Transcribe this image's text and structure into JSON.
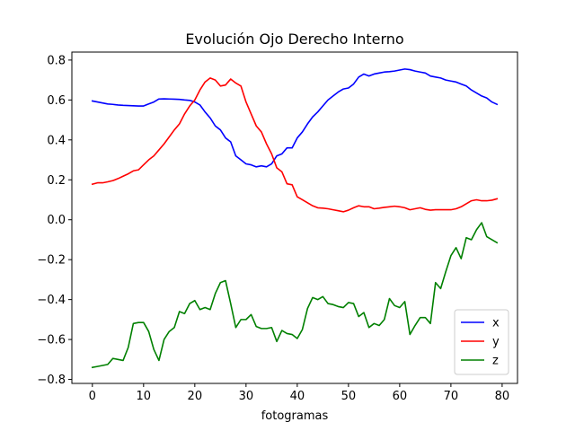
{
  "chart_data": {
    "type": "line",
    "title": "Evolución Ojo Derecho Interno",
    "xlabel": "fotogramas",
    "ylabel": "",
    "xlim": [
      -4,
      83
    ],
    "ylim": [
      -0.82,
      0.84
    ],
    "x_ticks": [
      0,
      10,
      20,
      30,
      40,
      50,
      60,
      70,
      80
    ],
    "x_tick_labels": [
      "0",
      "10",
      "20",
      "30",
      "40",
      "50",
      "60",
      "70",
      "80"
    ],
    "y_ticks": [
      -0.8,
      -0.6,
      -0.4,
      -0.2,
      0.0,
      0.2,
      0.4,
      0.6,
      0.8
    ],
    "y_tick_labels": [
      "−0.8",
      "−0.6",
      "−0.4",
      "−0.2",
      "0.0",
      "0.2",
      "0.4",
      "0.6",
      "0.8"
    ],
    "grid": false,
    "legend_position": "lower-right",
    "x": [
      0,
      1,
      2,
      3,
      4,
      5,
      6,
      7,
      8,
      9,
      10,
      11,
      12,
      13,
      14,
      15,
      16,
      17,
      18,
      19,
      20,
      21,
      22,
      23,
      24,
      25,
      26,
      27,
      28,
      29,
      30,
      31,
      32,
      33,
      34,
      35,
      36,
      37,
      38,
      39,
      40,
      41,
      42,
      43,
      44,
      45,
      46,
      47,
      48,
      49,
      50,
      51,
      52,
      53,
      54,
      55,
      56,
      57,
      58,
      59,
      60,
      61,
      62,
      63,
      64,
      65,
      66,
      67,
      68,
      69,
      70,
      71,
      72,
      73,
      74,
      75,
      76,
      77,
      78,
      79
    ],
    "series": [
      {
        "name": "x",
        "color": "#0000ff",
        "values": [
          0.595,
          0.59,
          0.585,
          0.58,
          0.578,
          0.575,
          0.573,
          0.572,
          0.571,
          0.57,
          0.57,
          0.58,
          0.59,
          0.605,
          0.606,
          0.605,
          0.604,
          0.603,
          0.6,
          0.598,
          0.59,
          0.575,
          0.54,
          0.51,
          0.47,
          0.45,
          0.41,
          0.39,
          0.32,
          0.3,
          0.28,
          0.275,
          0.265,
          0.27,
          0.265,
          0.28,
          0.32,
          0.33,
          0.36,
          0.36,
          0.41,
          0.44,
          0.48,
          0.515,
          0.54,
          0.57,
          0.6,
          0.62,
          0.64,
          0.655,
          0.66,
          0.68,
          0.715,
          0.73,
          0.72,
          0.73,
          0.735,
          0.74,
          0.742,
          0.745,
          0.75,
          0.755,
          0.752,
          0.745,
          0.74,
          0.735,
          0.72,
          0.715,
          0.71,
          0.7,
          0.695,
          0.69,
          0.68,
          0.67,
          0.65,
          0.635,
          0.62,
          0.61,
          0.59,
          0.578
        ]
      },
      {
        "name": "y",
        "color": "#ff0000",
        "values": [
          0.178,
          0.185,
          0.185,
          0.19,
          0.196,
          0.206,
          0.218,
          0.23,
          0.245,
          0.25,
          0.275,
          0.3,
          0.32,
          0.35,
          0.38,
          0.415,
          0.45,
          0.48,
          0.53,
          0.57,
          0.6,
          0.65,
          0.69,
          0.71,
          0.7,
          0.67,
          0.675,
          0.705,
          0.685,
          0.67,
          0.59,
          0.53,
          0.47,
          0.44,
          0.38,
          0.33,
          0.26,
          0.24,
          0.18,
          0.175,
          0.115,
          0.1,
          0.085,
          0.07,
          0.06,
          0.058,
          0.055,
          0.05,
          0.045,
          0.04,
          0.048,
          0.06,
          0.07,
          0.065,
          0.065,
          0.055,
          0.058,
          0.062,
          0.065,
          0.068,
          0.065,
          0.06,
          0.05,
          0.055,
          0.06,
          0.052,
          0.048,
          0.05,
          0.05,
          0.05,
          0.05,
          0.055,
          0.065,
          0.08,
          0.095,
          0.1,
          0.095,
          0.095,
          0.098,
          0.105
        ]
      },
      {
        "name": "z",
        "color": "#008000",
        "values": [
          -0.74,
          -0.735,
          -0.73,
          -0.725,
          -0.695,
          -0.7,
          -0.705,
          -0.64,
          -0.52,
          -0.515,
          -0.515,
          -0.56,
          -0.65,
          -0.705,
          -0.6,
          -0.56,
          -0.54,
          -0.46,
          -0.47,
          -0.42,
          -0.405,
          -0.45,
          -0.44,
          -0.45,
          -0.37,
          -0.315,
          -0.305,
          -0.42,
          -0.54,
          -0.5,
          -0.5,
          -0.475,
          -0.535,
          -0.545,
          -0.545,
          -0.54,
          -0.61,
          -0.555,
          -0.57,
          -0.575,
          -0.595,
          -0.55,
          -0.445,
          -0.39,
          -0.4,
          -0.385,
          -0.42,
          -0.425,
          -0.435,
          -0.44,
          -0.415,
          -0.42,
          -0.485,
          -0.465,
          -0.54,
          -0.52,
          -0.53,
          -0.5,
          -0.395,
          -0.43,
          -0.44,
          -0.41,
          -0.575,
          -0.53,
          -0.49,
          -0.49,
          -0.52,
          -0.315,
          -0.345,
          -0.26,
          -0.18,
          -0.14,
          -0.195,
          -0.09,
          -0.1,
          -0.05,
          -0.015,
          -0.085,
          -0.1,
          -0.115
        ]
      }
    ]
  }
}
